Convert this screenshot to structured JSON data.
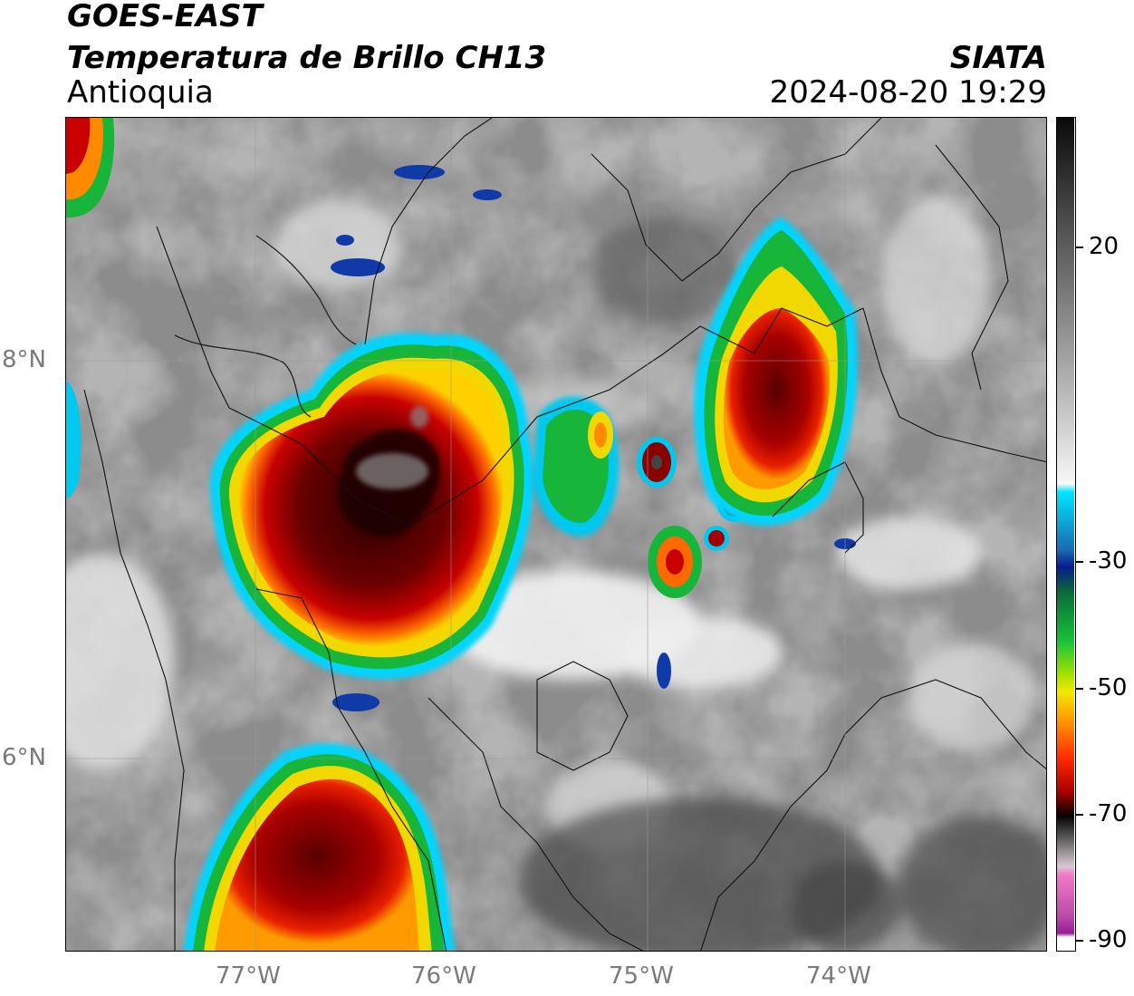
{
  "header": {
    "satellite": "GOES-EAST",
    "product": "Temperatura de Brillo CH13",
    "region": "Antioquia",
    "organization": "SIATA",
    "timestamp": "2024-08-20 19:29"
  },
  "axes": {
    "lat_labels": [
      "8°N",
      "6°N"
    ],
    "lon_labels": [
      "77°W",
      "76°W",
      "75°W",
      "74°W"
    ]
  },
  "colorbar": {
    "tick_labels": [
      "20",
      "-30",
      "-50",
      "-70",
      "-90"
    ],
    "colors": {
      "warm_top": "#111111",
      "warm_mid": "#8a8a8a",
      "neutral": "#f5f5f5",
      "cyan": "#00e5ff",
      "blue": "#0a1a8a",
      "green": "#19c43a",
      "yellow": "#f5e800",
      "orange": "#ff8a00",
      "red": "#e00000",
      "dark_red": "#5a0000",
      "black": "#050505",
      "pink": "#f07ac8",
      "magenta": "#9a1a9a"
    }
  }
}
